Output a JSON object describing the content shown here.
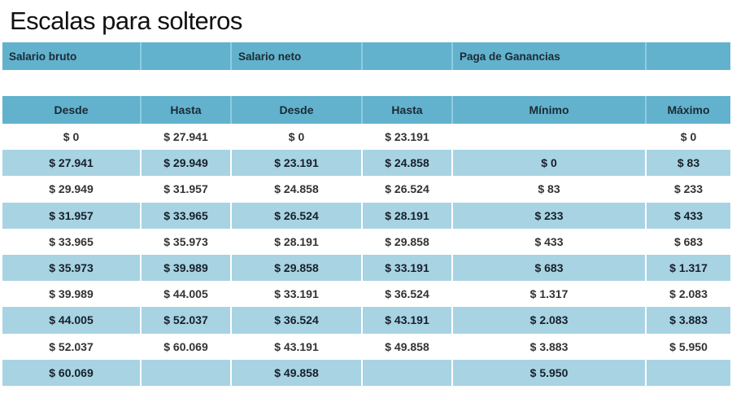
{
  "title": "Escalas para solteros",
  "group_headers": [
    "Salario bruto",
    "",
    "Salario neto",
    "",
    "Paga de Ganancias",
    ""
  ],
  "column_headers": [
    "Desde",
    "Hasta",
    "Desde",
    "Hasta",
    "Mínimo",
    "Máximo"
  ],
  "colors": {
    "header": "#62b2ce",
    "band": "#a8d3e3",
    "white": "#ffffff"
  },
  "rows": [
    [
      "$ 0",
      "$ 27.941",
      "$ 0",
      "$ 23.191",
      "",
      "$ 0"
    ],
    [
      "$ 27.941",
      "$ 29.949",
      "$ 23.191",
      "$ 24.858",
      "$ 0",
      "$ 83"
    ],
    [
      "$ 29.949",
      "$ 31.957",
      "$ 24.858",
      "$ 26.524",
      "$ 83",
      "$ 233"
    ],
    [
      "$ 31.957",
      "$ 33.965",
      "$ 26.524",
      "$ 28.191",
      "$ 233",
      "$ 433"
    ],
    [
      "$ 33.965",
      "$ 35.973",
      "$ 28.191",
      "$ 29.858",
      "$ 433",
      "$ 683"
    ],
    [
      "$ 35.973",
      "$ 39.989",
      "$ 29.858",
      "$ 33.191",
      "$ 683",
      "$ 1.317"
    ],
    [
      "$ 39.989",
      "$ 44.005",
      "$ 33.191",
      "$ 36.524",
      "$ 1.317",
      "$ 2.083"
    ],
    [
      "$ 44.005",
      "$ 52.037",
      "$ 36.524",
      "$ 43.191",
      "$ 2.083",
      "$ 3.883"
    ],
    [
      "$ 52.037",
      "$ 60.069",
      "$ 43.191",
      "$ 49.858",
      "$ 3.883",
      "$ 5.950"
    ],
    [
      "$ 60.069",
      "",
      "$ 49.858",
      "",
      "$ 5.950",
      ""
    ]
  ]
}
